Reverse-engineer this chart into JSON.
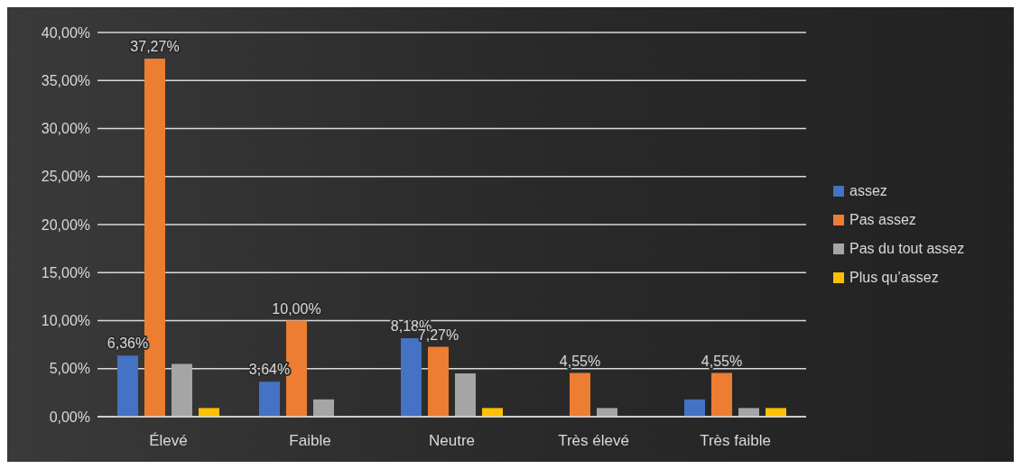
{
  "chart_data": {
    "type": "bar",
    "categories": [
      "Élevé",
      "Faible",
      "Neutre",
      "Très élevé",
      "Très faible"
    ],
    "series": [
      {
        "name": "assez",
        "color": "#4472c4",
        "values": [
          6.36,
          3.64,
          8.18,
          0,
          1.8
        ],
        "value_labels": [
          "6,36%",
          "3,64%",
          "8,18%",
          null,
          null
        ]
      },
      {
        "name": "Pas assez",
        "color": "#ed7d31",
        "values": [
          37.27,
          10,
          7.27,
          4.55,
          4.55
        ],
        "value_labels": [
          "37,27%",
          "10,00%",
          "7,27%",
          "4,55%",
          "4,55%"
        ]
      },
      {
        "name": "Pas du tout assez",
        "color": "#a5a5a5",
        "values": [
          5.5,
          1.8,
          4.5,
          0.9,
          0.9
        ]
      },
      {
        "name": "Plus qu’assez",
        "color": "#ffc000",
        "values": [
          0.9,
          0,
          0.9,
          0,
          0.9
        ]
      }
    ],
    "ylim": [
      0,
      40
    ],
    "yticks": [
      {
        "value": 0,
        "label": "0,00%"
      },
      {
        "value": 5,
        "label": "5,00%"
      },
      {
        "value": 10,
        "label": "10,00%"
      },
      {
        "value": 15,
        "label": "15,00%"
      },
      {
        "value": 20,
        "label": "20,00%"
      },
      {
        "value": 25,
        "label": "25,00%"
      },
      {
        "value": 30,
        "label": "30,00%"
      },
      {
        "value": 35,
        "label": "35,00%"
      },
      {
        "value": 40,
        "label": "40,00%"
      }
    ],
    "grid": "y",
    "legend": "right"
  }
}
